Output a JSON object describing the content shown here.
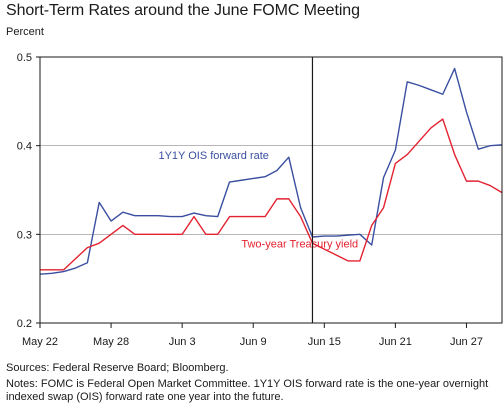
{
  "title": "Short-Term Rates around the June FOMC Meeting",
  "sources": "Sources: Federal Reserve Board; Bloomberg.",
  "notes": "Notes: FOMC is Federal Open Market Committee. 1Y1Y OIS forward rate is the one-year overnight indexed swap (OIS) forward rate one year into the future.",
  "colors": {
    "ois": "#3a4fa0",
    "treasury": "#e32230",
    "axis": "#1a1a1a"
  },
  "chart_data": {
    "type": "line",
    "ylabel": "Percent",
    "ylim": [
      0.2,
      0.5
    ],
    "yticks": [
      "0.2",
      "0.3",
      "0.4",
      "0.5"
    ],
    "xlim": [
      "2017-05-22",
      "2017-06-30"
    ],
    "xticks": [
      {
        "date": "2017-05-22",
        "label": "May 22"
      },
      {
        "date": "2017-05-28",
        "label": "May 28"
      },
      {
        "date": "2017-06-03",
        "label": "Jun 3"
      },
      {
        "date": "2017-06-09",
        "label": "Jun 9"
      },
      {
        "date": "2017-06-15",
        "label": "Jun 15"
      },
      {
        "date": "2017-06-21",
        "label": "Jun 21"
      },
      {
        "date": "2017-06-27",
        "label": "Jun 27"
      }
    ],
    "event_line": "2017-06-14",
    "grid": "horizontal",
    "series": [
      {
        "name": "1Y1Y OIS forward rate",
        "color": "#3a4fa0",
        "points": [
          [
            "2017-05-22",
            0.255
          ],
          [
            "2017-05-23",
            0.256
          ],
          [
            "2017-05-24",
            0.258
          ],
          [
            "2017-05-25",
            0.262
          ],
          [
            "2017-05-26",
            0.268
          ],
          [
            "2017-05-27",
            0.336
          ],
          [
            "2017-05-28",
            0.315
          ],
          [
            "2017-05-29",
            0.325
          ],
          [
            "2017-05-30",
            0.321
          ],
          [
            "2017-05-31",
            0.321
          ],
          [
            "2017-06-01",
            0.321
          ],
          [
            "2017-06-02",
            0.32
          ],
          [
            "2017-06-03",
            0.32
          ],
          [
            "2017-06-04",
            0.324
          ],
          [
            "2017-06-05",
            0.321
          ],
          [
            "2017-06-06",
            0.32
          ],
          [
            "2017-06-07",
            0.359
          ],
          [
            "2017-06-08",
            0.361
          ],
          [
            "2017-06-09",
            0.363
          ],
          [
            "2017-06-10",
            0.365
          ],
          [
            "2017-06-11",
            0.372
          ],
          [
            "2017-06-12",
            0.387
          ],
          [
            "2017-06-13",
            0.33
          ],
          [
            "2017-06-14",
            0.297
          ],
          [
            "2017-06-15",
            0.298
          ],
          [
            "2017-06-16",
            0.298
          ],
          [
            "2017-06-17",
            0.299
          ],
          [
            "2017-06-18",
            0.3
          ],
          [
            "2017-06-19",
            0.288
          ],
          [
            "2017-06-20",
            0.364
          ],
          [
            "2017-06-21",
            0.395
          ],
          [
            "2017-06-22",
            0.472
          ],
          [
            "2017-06-23",
            0.468
          ],
          [
            "2017-06-24",
            0.463
          ],
          [
            "2017-06-25",
            0.458
          ],
          [
            "2017-06-26",
            0.487
          ],
          [
            "2017-06-27",
            0.438
          ],
          [
            "2017-06-28",
            0.396
          ],
          [
            "2017-06-29",
            0.4
          ],
          [
            "2017-06-30",
            0.401
          ]
        ]
      },
      {
        "name": "Two-year Treasury yield",
        "color": "#e32230",
        "points": [
          [
            "2017-05-22",
            0.26
          ],
          [
            "2017-05-23",
            0.26
          ],
          [
            "2017-05-24",
            0.26
          ],
          [
            "2017-05-26",
            0.285
          ],
          [
            "2017-05-27",
            0.29
          ],
          [
            "2017-05-29",
            0.31
          ],
          [
            "2017-05-30",
            0.3
          ],
          [
            "2017-05-31",
            0.3
          ],
          [
            "2017-06-01",
            0.3
          ],
          [
            "2017-06-02",
            0.3
          ],
          [
            "2017-06-03",
            0.3
          ],
          [
            "2017-06-04",
            0.32
          ],
          [
            "2017-06-05",
            0.3
          ],
          [
            "2017-06-06",
            0.3
          ],
          [
            "2017-06-07",
            0.32
          ],
          [
            "2017-06-08",
            0.32
          ],
          [
            "2017-06-09",
            0.32
          ],
          [
            "2017-06-10",
            0.32
          ],
          [
            "2017-06-11",
            0.34
          ],
          [
            "2017-06-12",
            0.34
          ],
          [
            "2017-06-13",
            0.32
          ],
          [
            "2017-06-14",
            0.29
          ],
          [
            "2017-06-17",
            0.27
          ],
          [
            "2017-06-18",
            0.27
          ],
          [
            "2017-06-19",
            0.31
          ],
          [
            "2017-06-20",
            0.33
          ],
          [
            "2017-06-21",
            0.38
          ],
          [
            "2017-06-22",
            0.39
          ],
          [
            "2017-06-24",
            0.42
          ],
          [
            "2017-06-25",
            0.43
          ],
          [
            "2017-06-26",
            0.39
          ],
          [
            "2017-06-27",
            0.36
          ],
          [
            "2017-06-28",
            0.36
          ],
          [
            "2017-06-29",
            0.355
          ],
          [
            "2017-06-30",
            0.347
          ]
        ]
      }
    ],
    "annotations": [
      {
        "text": "1Y1Y OIS forward rate",
        "series": 0,
        "anchor": "2017-06-01",
        "value": 0.385
      },
      {
        "text": "Two-year Treasury yield",
        "series": 1,
        "anchor": "2017-06-08",
        "value": 0.285
      }
    ]
  }
}
